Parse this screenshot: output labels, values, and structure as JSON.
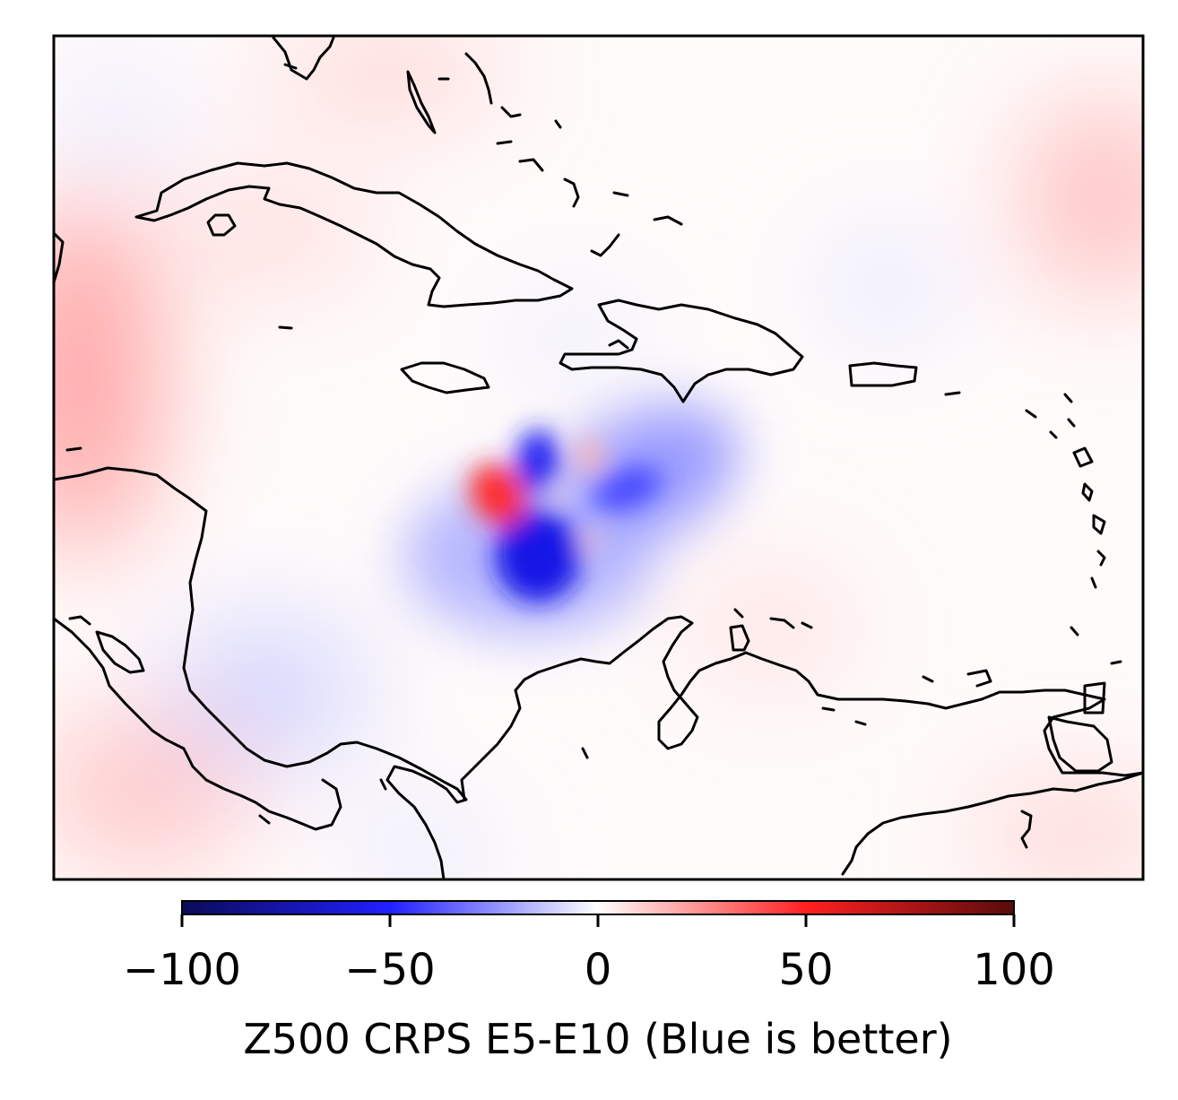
{
  "colorbar": {
    "label": "Z500 CRPS E5-E10 (Blue is better)",
    "range": [
      -100,
      100
    ],
    "ticks": [
      -100,
      -50,
      0,
      50,
      100
    ],
    "tick_labels": [
      "−100",
      "−50",
      "0",
      "50",
      "100"
    ],
    "colormap": [
      "#0b0b5a",
      "#2020ff",
      "#ffffff",
      "#ff2020",
      "#5a0b0b"
    ]
  },
  "field": {
    "features": [
      {
        "name": "southern-blue-lobe",
        "value": -85
      },
      {
        "name": "northern-blue-lobe",
        "value": -75
      },
      {
        "name": "eastern-blue-arm",
        "value": -55
      },
      {
        "name": "western-red-lobe",
        "value": 55
      },
      {
        "name": "eastern-red-spot",
        "value": 20
      }
    ]
  },
  "colors": {
    "frame": "#000000",
    "coastline": "#000000"
  }
}
